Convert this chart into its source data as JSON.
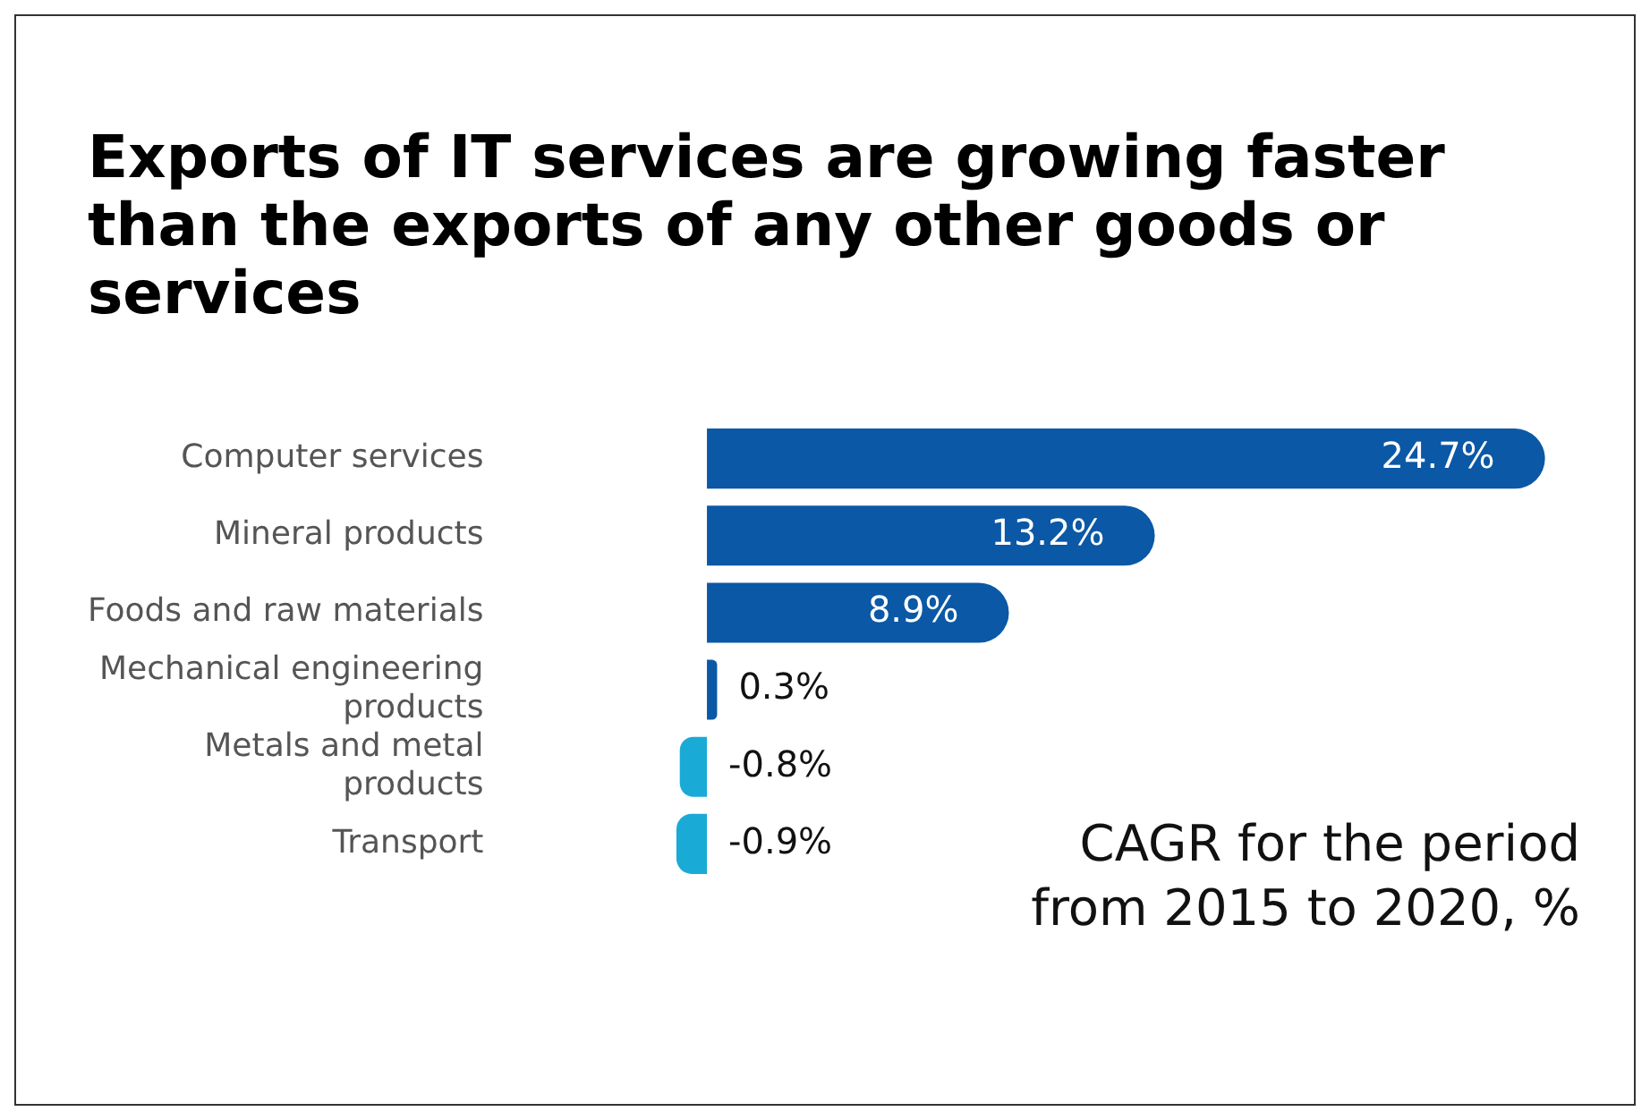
{
  "chart_data": {
    "type": "bar",
    "orientation": "horizontal",
    "title": "Exports of IT services are growing faster than the exports of any other goods or services",
    "categories": [
      "Computer services",
      "Mineral products",
      "Foods and raw materials",
      "Mechanical engineering products",
      "Metals and metal products",
      "Transport"
    ],
    "values": [
      24.7,
      13.2,
      8.9,
      0.3,
      -0.8,
      -0.9
    ],
    "colors": [
      "#0b58a6",
      "#0b58a6",
      "#0b58a6",
      "#0b58a6",
      "#1aaad6",
      "#1aaad6"
    ],
    "value_labels": [
      "24.7%",
      "13.2%",
      "8.9%",
      "0.3%",
      "-0.8%",
      "-0.9%"
    ],
    "annotations": [
      "CAGR for the period from 2015 to 2020, %"
    ],
    "grid": false,
    "legend": false
  }
}
